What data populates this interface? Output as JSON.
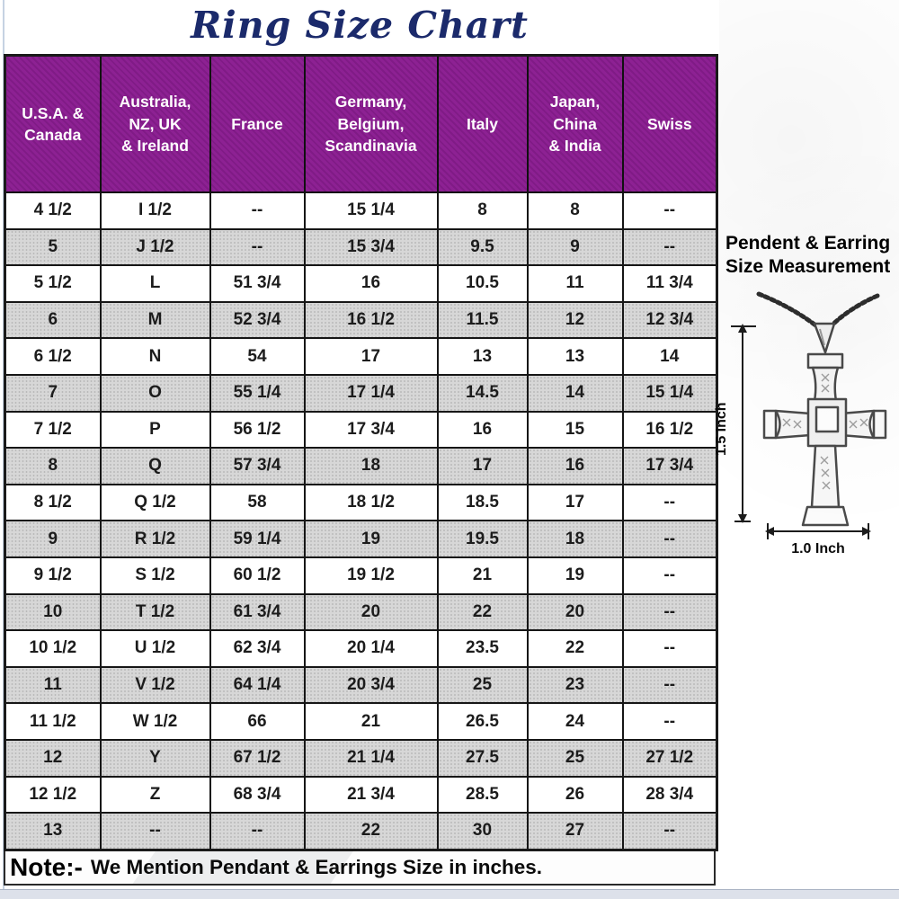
{
  "title": "Ring Size Chart",
  "chart_data": {
    "type": "table",
    "title": "Ring Size Chart",
    "columns": [
      "U.S.A. &\nCanada",
      "Australia,\nNZ, UK\n& Ireland",
      "France",
      "Germany,\nBelgium,\nScandinavia",
      "Italy",
      "Japan,\nChina\n& India",
      "Swiss"
    ],
    "rows": [
      [
        "4 1/2",
        "I 1/2",
        "--",
        "15 1/4",
        "8",
        "8",
        "--"
      ],
      [
        "5",
        "J 1/2",
        "--",
        "15 3/4",
        "9.5",
        "9",
        "--"
      ],
      [
        "5 1/2",
        "L",
        "51 3/4",
        "16",
        "10.5",
        "11",
        "11 3/4"
      ],
      [
        "6",
        "M",
        "52 3/4",
        "16 1/2",
        "11.5",
        "12",
        "12 3/4"
      ],
      [
        "6 1/2",
        "N",
        "54",
        "17",
        "13",
        "13",
        "14"
      ],
      [
        "7",
        "O",
        "55 1/4",
        "17 1/4",
        "14.5",
        "14",
        "15 1/4"
      ],
      [
        "7 1/2",
        "P",
        "56 1/2",
        "17 3/4",
        "16",
        "15",
        "16 1/2"
      ],
      [
        "8",
        "Q",
        "57 3/4",
        "18",
        "17",
        "16",
        "17 3/4"
      ],
      [
        "8 1/2",
        "Q 1/2",
        "58",
        "18 1/2",
        "18.5",
        "17",
        "--"
      ],
      [
        "9",
        "R 1/2",
        "59 1/4",
        "19",
        "19.5",
        "18",
        "--"
      ],
      [
        "9 1/2",
        "S 1/2",
        "60 1/2",
        "19 1/2",
        "21",
        "19",
        "--"
      ],
      [
        "10",
        "T 1/2",
        "61 3/4",
        "20",
        "22",
        "20",
        "--"
      ],
      [
        "10 1/2",
        "U 1/2",
        "62 3/4",
        "20 1/4",
        "23.5",
        "22",
        "--"
      ],
      [
        "11",
        "V 1/2",
        "64 1/4",
        "20 3/4",
        "25",
        "23",
        "--"
      ],
      [
        "11 1/2",
        "W 1/2",
        "66",
        "21",
        "26.5",
        "24",
        "--"
      ],
      [
        "12",
        "Y",
        "67 1/2",
        "21 1/4",
        "27.5",
        "25",
        "27 1/2"
      ],
      [
        "12 1/2",
        "Z",
        "68 3/4",
        "21 3/4",
        "28.5",
        "26",
        "28 3/4"
      ],
      [
        "13",
        "--",
        "--",
        "22",
        "30",
        "27",
        "--"
      ]
    ]
  },
  "note": {
    "label": "Note:-",
    "text": "We Mention Pendant & Earrings Size in inches."
  },
  "side_panel": {
    "heading_line1": "Pendent & Earring",
    "heading_line2": "Size Measurement",
    "height_label": "1.5 Inch",
    "width_label": "1.0 Inch"
  },
  "colors": {
    "header_purple": "#8B1D91",
    "title_navy": "#1B2A6B",
    "shaded_row_gray": "#D7D7D7",
    "border_black": "#161616"
  }
}
